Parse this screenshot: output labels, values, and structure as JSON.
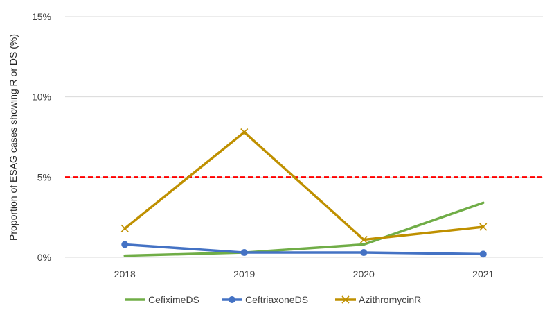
{
  "chart_data": {
    "type": "line",
    "title": "",
    "xlabel": "",
    "ylabel": "Proportion of ESAG cases showing R or DS (%)",
    "categories": [
      "2018",
      "2019",
      "2020",
      "2021"
    ],
    "ylim": [
      0,
      15
    ],
    "y_ticks": [
      0,
      5,
      10,
      15
    ],
    "y_tick_labels": [
      "0%",
      "5%",
      "10%",
      "15%"
    ],
    "grid": true,
    "legend_position": "bottom",
    "threshold": {
      "value": 5,
      "color": "#ff0000",
      "style": "dashed"
    },
    "series": [
      {
        "name": "CefiximeDS",
        "color": "#70ad47",
        "marker": "none",
        "values": [
          0.1,
          0.3,
          0.8,
          3.4
        ]
      },
      {
        "name": "CeftriaxoneDS",
        "color": "#4472c4",
        "marker": "circle",
        "values": [
          0.8,
          0.3,
          0.3,
          0.2
        ]
      },
      {
        "name": "AzithromycinR",
        "color": "#bf9000",
        "marker": "x",
        "values": [
          1.8,
          7.8,
          1.1,
          1.9
        ]
      }
    ]
  }
}
